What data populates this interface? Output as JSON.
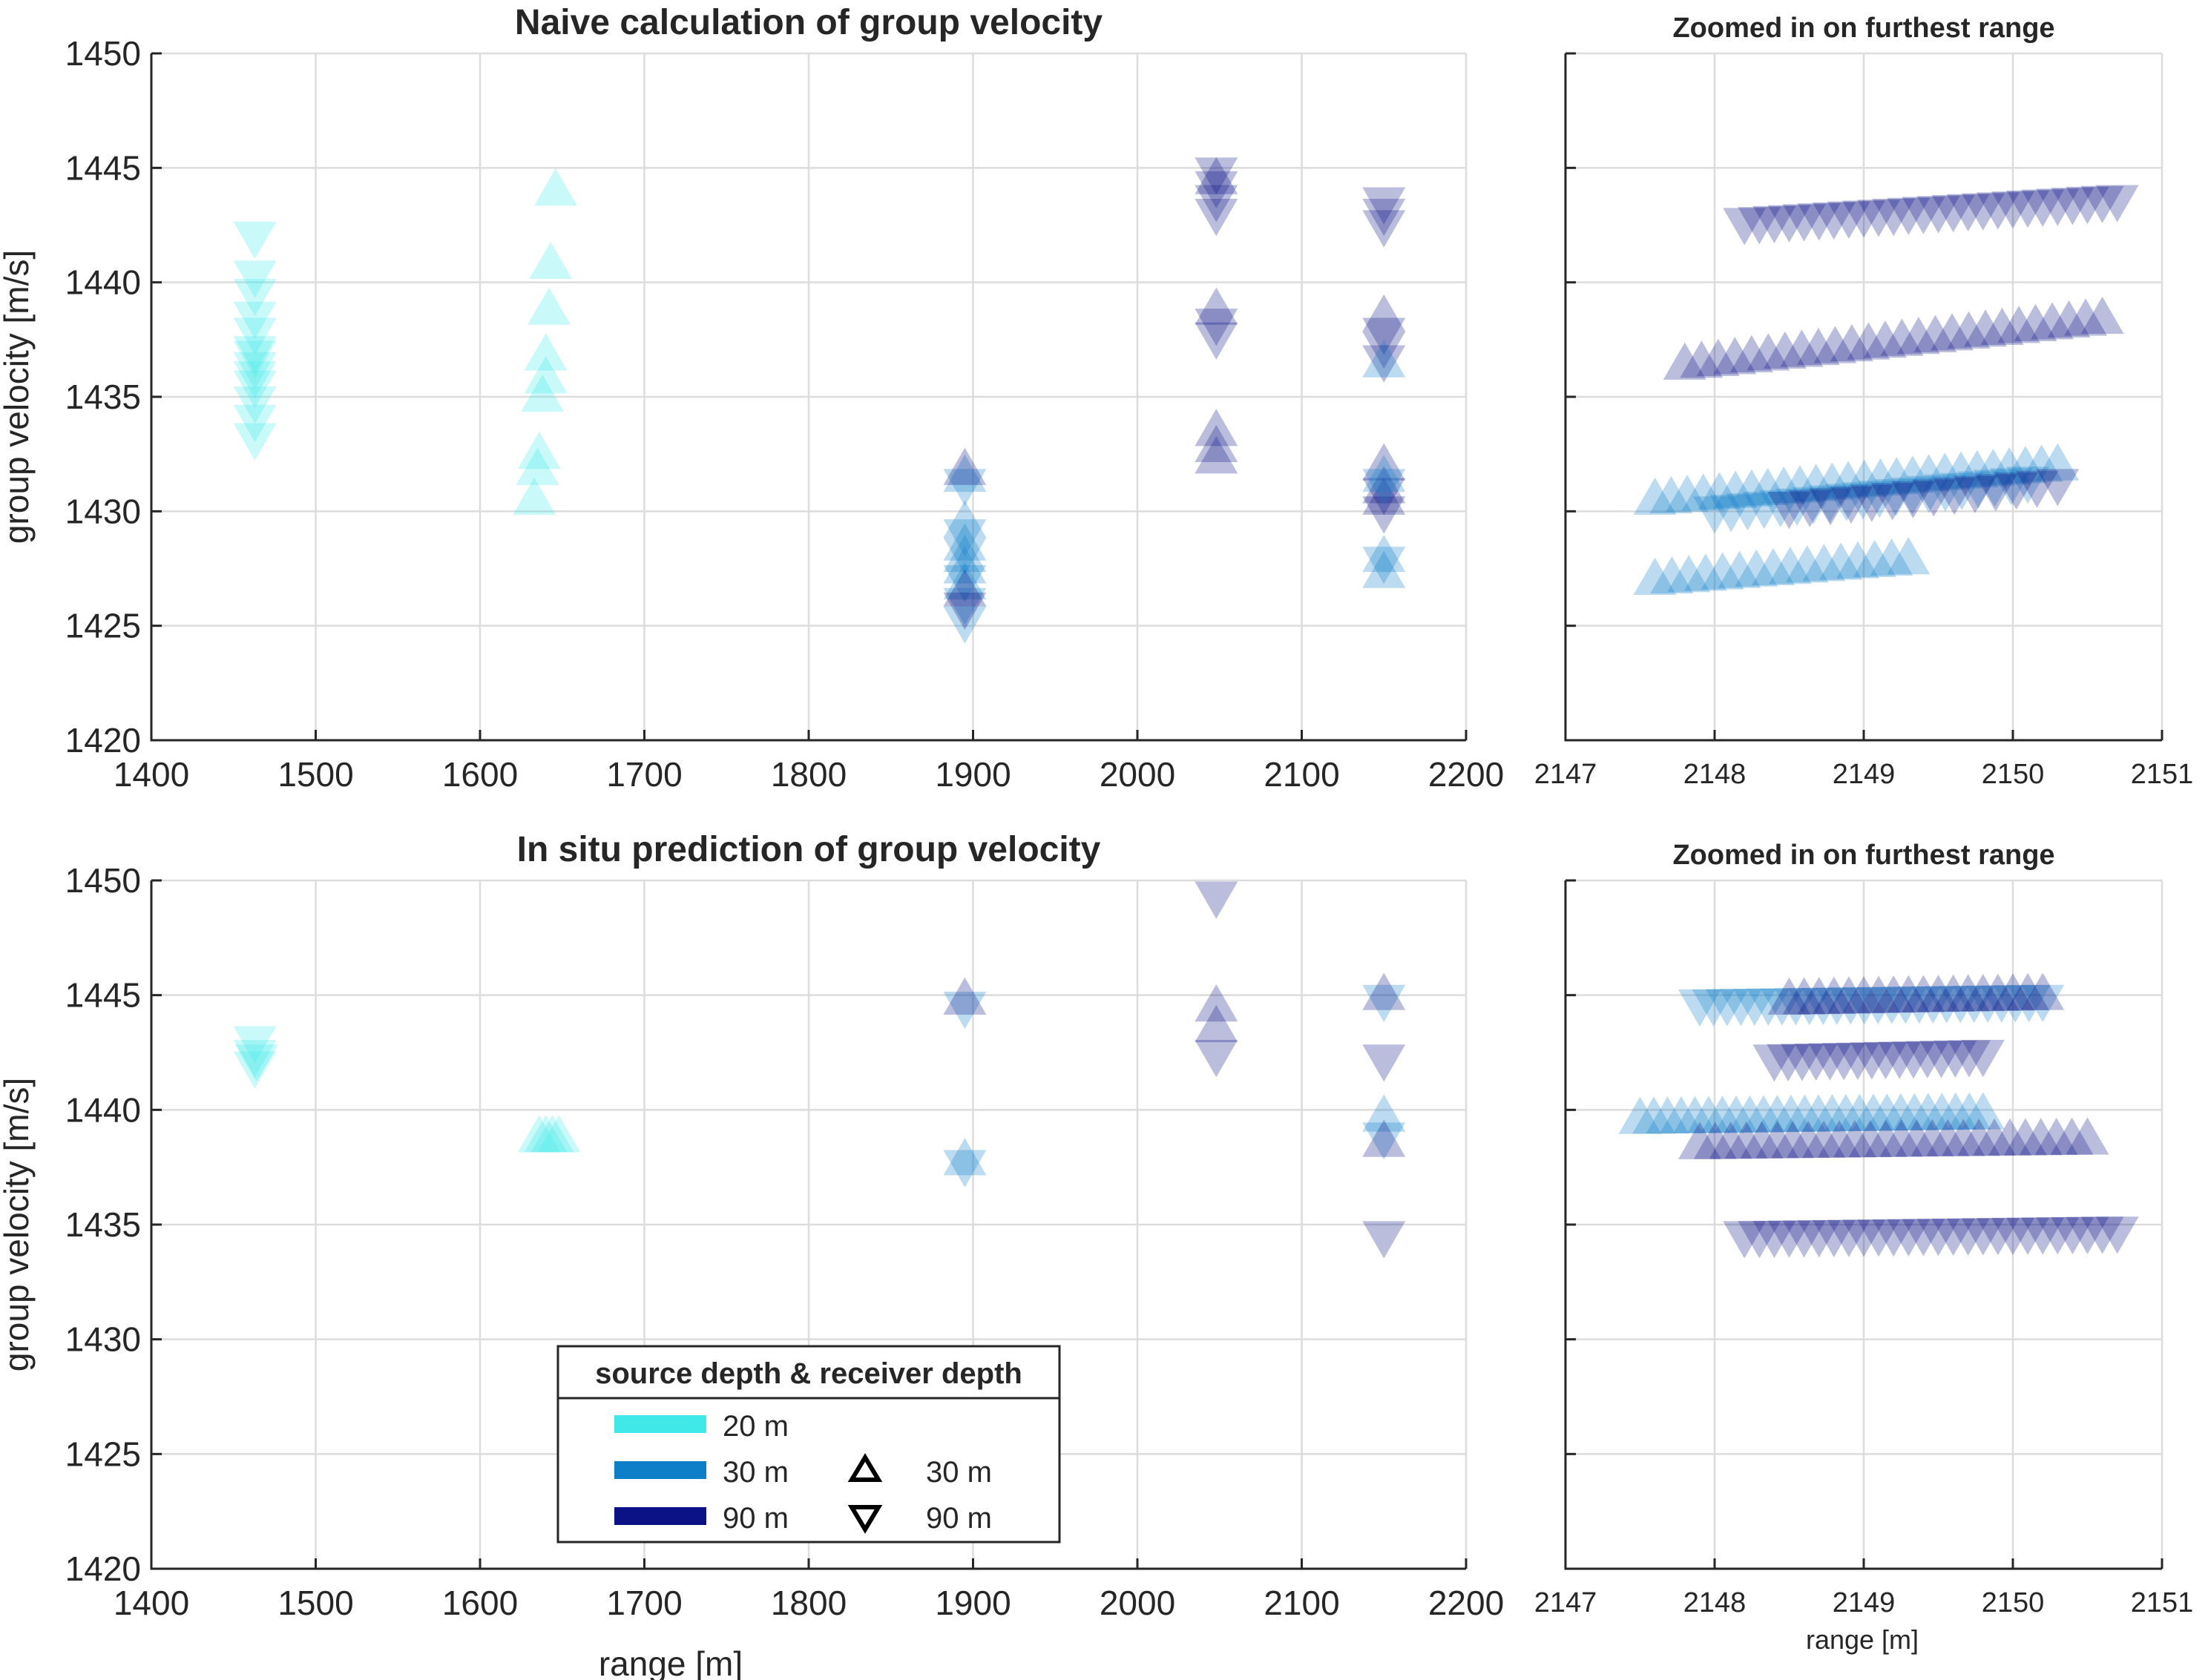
{
  "colors": {
    "d20": "#40e8e8",
    "d30": "#0d7fc8",
    "d90": "#0b1285"
  },
  "chart_data": [
    {
      "id": "top-main",
      "type": "scatter",
      "title": "Naive calculation of group velocity",
      "xlabel": "",
      "ylabel": "group velocity [m/s]",
      "xlim": [
        1400,
        2200
      ],
      "ylim": [
        1420,
        1450
      ],
      "xticks": [
        "1400",
        "1500",
        "1600",
        "1700",
        "1800",
        "1900",
        "2000",
        "2100",
        "2200"
      ],
      "yticks": [
        "1420",
        "1425",
        "1430",
        "1435",
        "1440",
        "1445",
        "1450"
      ],
      "grid": true,
      "series": [
        {
          "source_depth": "20 m",
          "receiver_depth": "90 m",
          "color": "d20",
          "marker": "down",
          "points": [
            [
              1463,
              1442
            ],
            [
              1463,
              1440.3
            ],
            [
              1463,
              1439.5
            ],
            [
              1463,
              1438.5
            ],
            [
              1463,
              1437.8
            ],
            [
              1463,
              1437
            ],
            [
              1463,
              1436.3
            ],
            [
              1463,
              1435.5
            ],
            [
              1463,
              1434.8
            ],
            [
              1463,
              1434
            ],
            [
              1463,
              1433.2
            ],
            [
              1463,
              1436.8
            ],
            [
              1463,
              1435.9
            ]
          ]
        },
        {
          "source_depth": "20 m",
          "receiver_depth": "30 m",
          "color": "d20",
          "marker": "up",
          "points": [
            [
              1646,
              1444
            ],
            [
              1643,
              1440.8
            ],
            [
              1642,
              1438.8
            ],
            [
              1640,
              1436.8
            ],
            [
              1640,
              1435.8
            ],
            [
              1638,
              1435
            ],
            [
              1636,
              1432.5
            ],
            [
              1635,
              1431.8
            ],
            [
              1633,
              1430.5
            ]
          ]
        },
        {
          "source_depth": "30 m",
          "receiver_depth": "30 m",
          "color": "d30",
          "marker": "up",
          "points": [
            [
              1895,
              1431.5
            ],
            [
              1895,
              1429.5
            ],
            [
              1895,
              1428.5
            ],
            [
              1895,
              1427.5
            ],
            [
              1895,
              1426.8
            ],
            [
              1895,
              1428
            ]
          ]
        },
        {
          "source_depth": "30 m",
          "receiver_depth": "90 m",
          "color": "d30",
          "marker": "down",
          "points": [
            [
              1895,
              1431.2
            ],
            [
              1895,
              1429
            ],
            [
              1895,
              1428.2
            ],
            [
              1895,
              1427
            ],
            [
              1895,
              1426
            ],
            [
              1895,
              1425.2
            ]
          ]
        },
        {
          "source_depth": "90 m",
          "receiver_depth": "30 m",
          "color": "d90",
          "marker": "up",
          "points": [
            [
              1895,
              1431.8
            ],
            [
              1895,
              1426.5
            ],
            [
              2048,
              1433.5
            ],
            [
              2048,
              1432.8
            ],
            [
              2048,
              1432.3
            ],
            [
              2048,
              1438.8
            ],
            [
              2048,
              1444.5
            ],
            [
              2150,
              1438.5
            ],
            [
              2150,
              1432
            ],
            [
              2150,
              1431
            ],
            [
              2150,
              1430.5
            ]
          ]
        },
        {
          "source_depth": "90 m",
          "receiver_depth": "90 m",
          "color": "d90",
          "marker": "down",
          "points": [
            [
              1895,
              1425.8
            ],
            [
              2048,
              1444.8
            ],
            [
              2048,
              1444.2
            ],
            [
              2048,
              1443.6
            ],
            [
              2048,
              1443
            ],
            [
              2048,
              1438.2
            ],
            [
              2048,
              1437.6
            ],
            [
              2150,
              1443.5
            ],
            [
              2150,
              1443
            ],
            [
              2150,
              1442.5
            ],
            [
              2150,
              1437.8
            ],
            [
              2150,
              1437.2
            ],
            [
              2150,
              1436.6
            ],
            [
              2150,
              1430.8
            ],
            [
              2150,
              1430
            ]
          ]
        },
        {
          "source_depth": "30 m",
          "receiver_depth": "30 m",
          "color": "d30",
          "marker": "up",
          "points": [
            [
              2150,
              1428
            ],
            [
              2150,
              1427.3
            ],
            [
              2150,
              1431.5
            ],
            [
              2150,
              1436.5
            ]
          ]
        },
        {
          "source_depth": "30 m",
          "receiver_depth": "90 m",
          "color": "d30",
          "marker": "down",
          "points": [
            [
              2150,
              1431.2
            ],
            [
              2150,
              1427.8
            ]
          ]
        }
      ]
    },
    {
      "id": "top-zoom",
      "type": "scatter",
      "title": "Zoomed in on furthest range",
      "xlabel": "",
      "ylabel": "",
      "xlim": [
        2147,
        2151
      ],
      "ylim": [
        1420,
        1450
      ],
      "xticks": [
        "2147",
        "2148",
        "2149",
        "2150",
        "2151"
      ],
      "yticks": [],
      "grid": true,
      "series": [
        {
          "source_depth": "90 m",
          "receiver_depth": "90 m",
          "color": "d90",
          "marker": "down",
          "x_range": [
            2148.2,
            2150.7
          ],
          "y_range": [
            1442.6,
            1443.6
          ],
          "n": 26
        },
        {
          "source_depth": "90 m",
          "receiver_depth": "30 m",
          "color": "d90",
          "marker": "up",
          "x_range": [
            2147.8,
            2150.6
          ],
          "y_range": [
            1436.4,
            1438.4
          ],
          "n": 26
        },
        {
          "source_depth": "30 m",
          "receiver_depth": "30 m",
          "color": "d30",
          "marker": "up",
          "x_range": [
            2147.6,
            2150.3
          ],
          "y_range": [
            1430.5,
            1432.0
          ],
          "n": 26
        },
        {
          "source_depth": "30 m",
          "receiver_depth": "90 m",
          "color": "d30",
          "marker": "down",
          "x_range": [
            2148,
            2150.1
          ],
          "y_range": [
            1430.0,
            1431.3
          ],
          "n": 20
        },
        {
          "source_depth": "90 m",
          "receiver_depth": "90 m",
          "color": "d90",
          "marker": "down",
          "x_range": [
            2148.5,
            2150.3
          ],
          "y_range": [
            1430.2,
            1431.2
          ],
          "n": 14
        },
        {
          "source_depth": "30 m",
          "receiver_depth": "30 m",
          "color": "d30",
          "marker": "up",
          "x_range": [
            2147.6,
            2149.3
          ],
          "y_range": [
            1427.0,
            1427.9
          ],
          "n": 16
        }
      ]
    },
    {
      "id": "bottom-main",
      "type": "scatter",
      "title": "In situ prediction of group velocity",
      "xlabel": "range [m]",
      "ylabel": "group velocity [m/s]",
      "xlim": [
        1400,
        2200
      ],
      "ylim": [
        1420,
        1450
      ],
      "xticks": [
        "1400",
        "1500",
        "1600",
        "1700",
        "1800",
        "1900",
        "2000",
        "2100",
        "2200"
      ],
      "yticks": [
        "1420",
        "1425",
        "1430",
        "1435",
        "1440",
        "1445",
        "1450"
      ],
      "grid": true,
      "series": [
        {
          "source_depth": "20 m",
          "receiver_depth": "90 m",
          "color": "d20",
          "marker": "down",
          "points": [
            [
              1463,
              1443.0
            ],
            [
              1463,
              1442.4
            ],
            [
              1463,
              1441.9
            ],
            [
              1464,
              1442.2
            ]
          ]
        },
        {
          "source_depth": "20 m",
          "receiver_depth": "30 m",
          "color": "d20",
          "marker": "up",
          "points": [
            [
              1636,
              1438.8
            ],
            [
              1640,
              1438.8
            ],
            [
              1644,
              1438.8
            ],
            [
              1648,
              1438.8
            ]
          ]
        },
        {
          "source_depth": "30 m",
          "receiver_depth": "90 m",
          "color": "d30",
          "marker": "down",
          "points": [
            [
              1895,
              1444.5
            ],
            [
              1895,
              1437.6
            ],
            [
              2150,
              1444.8
            ],
            [
              2150,
              1438.8
            ]
          ]
        },
        {
          "source_depth": "30 m",
          "receiver_depth": "30 m",
          "color": "d30",
          "marker": "up",
          "points": [
            [
              1895,
              1437.8
            ],
            [
              2150,
              1439.7
            ]
          ]
        },
        {
          "source_depth": "90 m",
          "receiver_depth": "30 m",
          "color": "d90",
          "marker": "up",
          "points": [
            [
              1895,
              1444.8
            ],
            [
              2048,
              1444.5
            ],
            [
              2048,
              1443.6
            ],
            [
              2150,
              1445.0
            ],
            [
              2150,
              1438.6
            ]
          ]
        },
        {
          "source_depth": "90 m",
          "receiver_depth": "90 m",
          "color": "d90",
          "marker": "down",
          "points": [
            [
              2048,
              1449.3
            ],
            [
              2048,
              1442.4
            ],
            [
              2150,
              1442.2
            ],
            [
              2150,
              1434.5
            ]
          ]
        }
      ]
    },
    {
      "id": "bottom-zoom",
      "type": "scatter",
      "title": "Zoomed in on furthest range",
      "xlabel": "range [m]",
      "ylabel": "",
      "xlim": [
        2147,
        2151
      ],
      "ylim": [
        1420,
        1450
      ],
      "xticks": [
        "2147",
        "2148",
        "2149",
        "2150",
        "2151"
      ],
      "yticks": [],
      "grid": true,
      "series": [
        {
          "source_depth": "30 m",
          "receiver_depth": "90 m",
          "color": "d30",
          "marker": "down",
          "x_range": [
            2147.9,
            2150.2
          ],
          "y_range": [
            1444.6,
            1444.8
          ],
          "n": 26
        },
        {
          "source_depth": "90 m",
          "receiver_depth": "30 m",
          "color": "d90",
          "marker": "up",
          "x_range": [
            2148.5,
            2150.2
          ],
          "y_range": [
            1444.8,
            1445.0
          ],
          "n": 18
        },
        {
          "source_depth": "90 m",
          "receiver_depth": "90 m",
          "color": "d90",
          "marker": "down",
          "x_range": [
            2148.4,
            2149.8
          ],
          "y_range": [
            1442.2,
            1442.4
          ],
          "n": 16
        },
        {
          "source_depth": "30 m",
          "receiver_depth": "30 m",
          "color": "d30",
          "marker": "up",
          "x_range": [
            2147.5,
            2149.8
          ],
          "y_range": [
            1439.6,
            1439.8
          ],
          "n": 26
        },
        {
          "source_depth": "90 m",
          "receiver_depth": "30 m",
          "color": "d90",
          "marker": "up",
          "x_range": [
            2147.9,
            2150.5
          ],
          "y_range": [
            1438.5,
            1438.7
          ],
          "n": 26
        },
        {
          "source_depth": "90 m",
          "receiver_depth": "90 m",
          "color": "d90",
          "marker": "down",
          "x_range": [
            2148.2,
            2150.7
          ],
          "y_range": [
            1434.5,
            1434.7
          ],
          "n": 26
        }
      ]
    }
  ],
  "legend": {
    "title": "source depth & receiver depth",
    "placement": "bottom-center",
    "source_entries": [
      {
        "label": "20 m",
        "color": "d20"
      },
      {
        "label": "30 m",
        "color": "d30"
      },
      {
        "label": "90 m",
        "color": "d90"
      }
    ],
    "receiver_entries": [
      {
        "label": "30 m",
        "marker": "up"
      },
      {
        "label": "90 m",
        "marker": "down"
      }
    ]
  }
}
